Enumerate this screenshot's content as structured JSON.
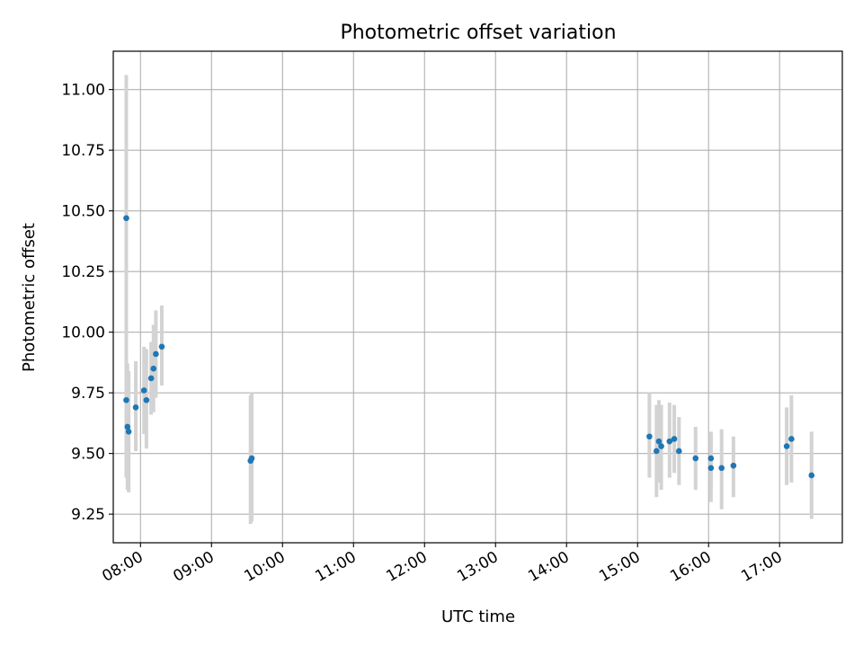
{
  "chart_data": {
    "type": "scatter",
    "title": "Photometric offset variation",
    "xlabel": "UTC time",
    "ylabel": "Photometric offset",
    "xlim": [
      "07:37",
      "17:53"
    ],
    "ylim": [
      9.132,
      11.158
    ],
    "x_ticks": [
      "08:00",
      "09:00",
      "10:00",
      "11:00",
      "12:00",
      "13:00",
      "14:00",
      "15:00",
      "16:00",
      "17:00"
    ],
    "y_ticks": [
      "9.25",
      "9.50",
      "9.75",
      "10.00",
      "10.25",
      "10.50",
      "10.75",
      "11.00"
    ],
    "grid": true,
    "marker_color": "#1f77b4",
    "errorbar_color": "#d3d3d3",
    "points": [
      {
        "t": "07:48",
        "y": 10.47,
        "lo": 9.89,
        "hi": 11.06
      },
      {
        "t": "07:48",
        "y": 9.72,
        "lo": 9.4,
        "hi": 9.9
      },
      {
        "t": "07:49",
        "y": 9.61,
        "lo": 9.35,
        "hi": 9.87
      },
      {
        "t": "07:50",
        "y": 9.59,
        "lo": 9.34,
        "hi": 9.84
      },
      {
        "t": "07:56",
        "y": 9.69,
        "lo": 9.51,
        "hi": 9.88
      },
      {
        "t": "08:03",
        "y": 9.76,
        "lo": 9.58,
        "hi": 9.94
      },
      {
        "t": "08:05",
        "y": 9.72,
        "lo": 9.52,
        "hi": 9.93
      },
      {
        "t": "08:09",
        "y": 9.81,
        "lo": 9.66,
        "hi": 9.96
      },
      {
        "t": "08:11",
        "y": 9.85,
        "lo": 9.67,
        "hi": 10.03
      },
      {
        "t": "08:13",
        "y": 9.91,
        "lo": 9.73,
        "hi": 10.09
      },
      {
        "t": "08:18",
        "y": 9.94,
        "lo": 9.78,
        "hi": 10.11
      },
      {
        "t": "09:33",
        "y": 9.47,
        "lo": 9.21,
        "hi": 9.74
      },
      {
        "t": "09:34",
        "y": 9.48,
        "lo": 9.22,
        "hi": 9.75
      },
      {
        "t": "15:10",
        "y": 9.57,
        "lo": 9.4,
        "hi": 9.75
      },
      {
        "t": "15:16",
        "y": 9.51,
        "lo": 9.32,
        "hi": 9.7
      },
      {
        "t": "15:18",
        "y": 9.55,
        "lo": 9.38,
        "hi": 9.72
      },
      {
        "t": "15:20",
        "y": 9.53,
        "lo": 9.35,
        "hi": 9.7
      },
      {
        "t": "15:27",
        "y": 9.55,
        "lo": 9.4,
        "hi": 9.71
      },
      {
        "t": "15:31",
        "y": 9.56,
        "lo": 9.42,
        "hi": 9.7
      },
      {
        "t": "15:35",
        "y": 9.51,
        "lo": 9.37,
        "hi": 9.65
      },
      {
        "t": "15:49",
        "y": 9.48,
        "lo": 9.35,
        "hi": 9.61
      },
      {
        "t": "16:02",
        "y": 9.48,
        "lo": 9.36,
        "hi": 9.59
      },
      {
        "t": "16:02",
        "y": 9.44,
        "lo": 9.3,
        "hi": 9.58
      },
      {
        "t": "16:11",
        "y": 9.44,
        "lo": 9.27,
        "hi": 9.6
      },
      {
        "t": "16:21",
        "y": 9.45,
        "lo": 9.32,
        "hi": 9.57
      },
      {
        "t": "17:06",
        "y": 9.53,
        "lo": 9.37,
        "hi": 9.69
      },
      {
        "t": "17:10",
        "y": 9.56,
        "lo": 9.38,
        "hi": 9.74
      },
      {
        "t": "17:27",
        "y": 9.41,
        "lo": 9.23,
        "hi": 9.59
      }
    ]
  }
}
